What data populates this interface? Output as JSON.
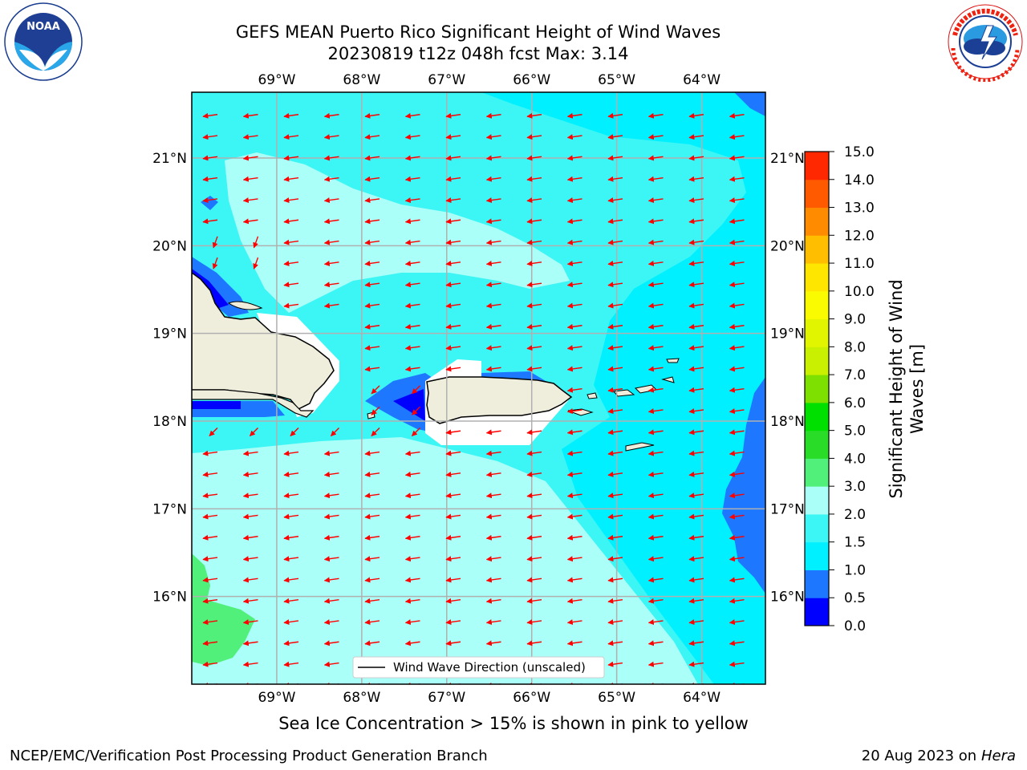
{
  "title": {
    "line1": "GEFS MEAN Puerto Rico Significant Height of Wind Waves",
    "line2": "20230819 t12z 048h fcst   Max: 3.14"
  },
  "logos": {
    "left": {
      "icon": "noaa-logo",
      "text": "NOAA",
      "ring_text": "NATIONAL OCEANIC AND ATMOSPHERIC ADMINISTRATION · U.S. DEPARTMENT OF COMMERCE"
    },
    "right": {
      "icon": "nws-logo",
      "ring_text": "NATIONAL WEATHER SERVICE"
    }
  },
  "map": {
    "lon_range": [
      -70.0,
      -63.25
    ],
    "lat_range": [
      15.0,
      21.75
    ],
    "lon_ticks": [
      "69°W",
      "68°W",
      "67°W",
      "66°W",
      "65°W",
      "64°W"
    ],
    "lat_ticks": [
      "21°N",
      "20°N",
      "19°N",
      "18°N",
      "17°N",
      "16°N"
    ],
    "grid": true,
    "legend": {
      "label": "Wind Wave Direction (unscaled)",
      "placement": "bottom-center"
    },
    "arrow_color": "#ff0000",
    "land_color": "#efeedd"
  },
  "colorbar": {
    "label": "Significant Height of Wind Waves [m]",
    "ticks": [
      "0.0",
      "0.5",
      "1.0",
      "1.5",
      "2.0",
      "3.0",
      "4.0",
      "5.0",
      "6.0",
      "7.0",
      "8.0",
      "9.0",
      "10.0",
      "11.0",
      "12.0",
      "13.0",
      "14.0",
      "15.0"
    ],
    "colors": [
      "#0000ff",
      "#1e78ff",
      "#00f0ff",
      "#3cf5f5",
      "#aafff8",
      "#50f07a",
      "#28dc28",
      "#00e000",
      "#7de000",
      "#c8f000",
      "#e1f500",
      "#fafa00",
      "#ffe600",
      "#ffbe00",
      "#ff8c00",
      "#ff5a00",
      "#ff2800"
    ]
  },
  "footer": {
    "note": "Sea Ice Concentration > 15% is shown in pink to yellow",
    "left": "NCEP/EMC/Verification Post Processing Product Generation Branch",
    "right_prefix": "20 Aug 2023 on",
    "right_host": "Hera"
  }
}
